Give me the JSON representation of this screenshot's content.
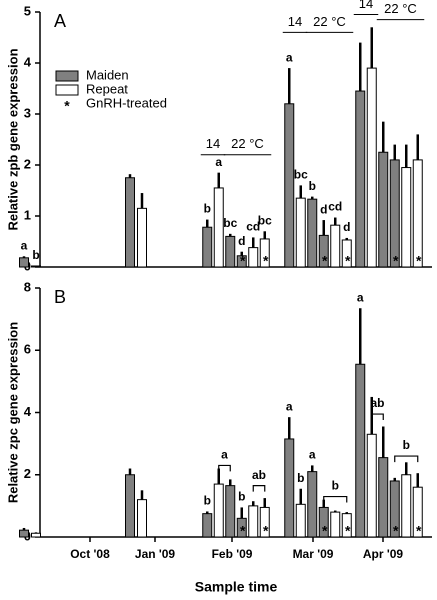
{
  "chart_data": [
    {
      "type": "bar",
      "panel": "A",
      "y_label": "Relative zpb gene expression",
      "ylim": [
        0,
        5
      ],
      "yticks": [
        0,
        1,
        2,
        3,
        4,
        5
      ],
      "legend": [
        {
          "name": "Maiden",
          "color": "#808080"
        },
        {
          "name": "Repeat",
          "color": "#ffffff"
        }
      ],
      "treated_marker": "*",
      "treated_label": "GnRH-treated",
      "groups": [
        {
          "bars": [
            {
              "color": "#808080",
              "value": 0.18,
              "error": 0.03,
              "letter": "a"
            },
            {
              "color": "#ffffff",
              "value": 0.02,
              "error": 0.0,
              "letter": "b"
            }
          ]
        },
        {
          "bars": [
            {
              "color": "#808080",
              "value": 1.75,
              "error": 0.07
            },
            {
              "color": "#ffffff",
              "value": 1.15,
              "error": 0.3
            }
          ]
        },
        {
          "bars": [
            {
              "color": "#808080",
              "value": 0.78,
              "error": 0.15,
              "letter": "b"
            },
            {
              "color": "#ffffff",
              "value": 1.55,
              "error": 0.3,
              "letter": "a"
            },
            {
              "color": "#808080",
              "value": 0.6,
              "error": 0.05,
              "letter": "bc"
            },
            {
              "color": "#808080",
              "value": 0.22,
              "error": 0.08,
              "letter": "d",
              "treated": true
            },
            {
              "color": "#ffffff",
              "value": 0.38,
              "error": 0.2,
              "letter": "cd"
            },
            {
              "color": "#ffffff",
              "value": 0.55,
              "error": 0.15,
              "letter": "bc",
              "treated": true
            }
          ],
          "temps": [
            {
              "label": "14",
              "bars": [
                0,
                1
              ],
              "level": 2.2
            },
            {
              "label": "22 °C",
              "bars": [
                2,
                5
              ],
              "level": 2.2
            }
          ]
        },
        {
          "bars": [
            {
              "color": "#808080",
              "value": 3.2,
              "error": 0.7,
              "letter": "a"
            },
            {
              "color": "#ffffff",
              "value": 1.35,
              "error": 0.25,
              "letter": "bc"
            },
            {
              "color": "#808080",
              "value": 1.33,
              "error": 0.05,
              "letter": "b"
            },
            {
              "color": "#808080",
              "value": 0.62,
              "error": 0.3,
              "letter": "d",
              "treated": true
            },
            {
              "color": "#ffffff",
              "value": 0.82,
              "error": 0.15,
              "letter": "cd"
            },
            {
              "color": "#ffffff",
              "value": 0.53,
              "error": 0.04,
              "letter": "d",
              "treated": true
            }
          ],
          "temps": [
            {
              "label": "14",
              "bars": [
                0,
                1
              ],
              "level": 4.6
            },
            {
              "label": "22 °C",
              "bars": [
                2,
                5
              ],
              "level": 4.6
            }
          ]
        },
        {
          "bars": [
            {
              "color": "#808080",
              "value": 3.45,
              "error": 0.95
            },
            {
              "color": "#ffffff",
              "value": 3.9,
              "error": 0.8
            },
            {
              "color": "#808080",
              "value": 2.25,
              "error": 0.6
            },
            {
              "color": "#808080",
              "value": 2.1,
              "error": 0.3,
              "treated": true
            },
            {
              "color": "#ffffff",
              "value": 1.95,
              "error": 0.45
            },
            {
              "color": "#ffffff",
              "value": 2.1,
              "error": 0.5,
              "treated": true
            }
          ],
          "temps": [
            {
              "label": "14",
              "bars": [
                0,
                1
              ],
              "level": 4.95
            },
            {
              "label": "22 °C",
              "bars": [
                2,
                5
              ],
              "level": 4.85
            }
          ]
        }
      ]
    },
    {
      "type": "bar",
      "panel": "B",
      "y_label": "Relative zpc gene expression",
      "x_label": "Sample time",
      "ylim": [
        0,
        8
      ],
      "yticks": [
        0,
        2,
        4,
        6,
        8
      ],
      "categories": [
        "Oct '08",
        "Jan '09",
        "Feb '09",
        "Mar '09",
        "Apr '09"
      ],
      "treated_marker": "*",
      "groups": [
        {
          "bars": [
            {
              "color": "#808080",
              "value": 0.22,
              "error": 0.07
            },
            {
              "color": "#ffffff",
              "value": 0.12,
              "error": 0.03
            }
          ]
        },
        {
          "bars": [
            {
              "color": "#808080",
              "value": 2.0,
              "error": 0.2
            },
            {
              "color": "#ffffff",
              "value": 1.2,
              "error": 0.3
            }
          ]
        },
        {
          "bars": [
            {
              "color": "#808080",
              "value": 0.75,
              "error": 0.07,
              "letter": "b"
            },
            {
              "color": "#ffffff",
              "value": 1.7,
              "error": 0.5
            },
            {
              "color": "#808080",
              "value": 1.65,
              "error": 0.2
            },
            {
              "color": "#808080",
              "value": 0.6,
              "error": 0.35,
              "letter": "b",
              "treated": true
            },
            {
              "color": "#ffffff",
              "value": 1.0,
              "error": 0.15
            },
            {
              "color": "#ffffff",
              "value": 0.95,
              "error": 0.3,
              "treated": true
            }
          ],
          "brackets": [
            {
              "label": "a",
              "bars": [
                1,
                2
              ],
              "level": 2.3
            },
            {
              "label": "ab",
              "bars": [
                4,
                5
              ],
              "level": 1.65
            }
          ]
        },
        {
          "bars": [
            {
              "color": "#808080",
              "value": 3.15,
              "error": 0.7,
              "letter": "a"
            },
            {
              "color": "#ffffff",
              "value": 1.05,
              "error": 0.5,
              "letter": "b"
            },
            {
              "color": "#808080",
              "value": 2.1,
              "error": 0.2,
              "letter": "a"
            },
            {
              "color": "#808080",
              "value": 0.95,
              "error": 0.25,
              "treated": true
            },
            {
              "color": "#ffffff",
              "value": 0.8,
              "error": 0.05
            },
            {
              "color": "#ffffff",
              "value": 0.75,
              "error": 0.05,
              "treated": true
            }
          ],
          "brackets": [
            {
              "label": "b",
              "bars": [
                3,
                5
              ],
              "level": 1.3
            }
          ]
        },
        {
          "bars": [
            {
              "color": "#808080",
              "value": 5.55,
              "error": 1.8,
              "letter": "a"
            },
            {
              "color": "#ffffff",
              "value": 3.3,
              "error": 1.2
            },
            {
              "color": "#808080",
              "value": 2.55,
              "error": 1.0
            },
            {
              "color": "#808080",
              "value": 1.8,
              "error": 0.1,
              "treated": true
            },
            {
              "color": "#ffffff",
              "value": 2.0,
              "error": 0.4
            },
            {
              "color": "#ffffff",
              "value": 1.6,
              "error": 0.45,
              "treated": true
            }
          ],
          "brackets": [
            {
              "label": "ab",
              "bars": [
                1,
                2
              ],
              "level": 3.95
            },
            {
              "label": "b",
              "bars": [
                3,
                5
              ],
              "level": 2.6
            }
          ]
        }
      ]
    }
  ]
}
